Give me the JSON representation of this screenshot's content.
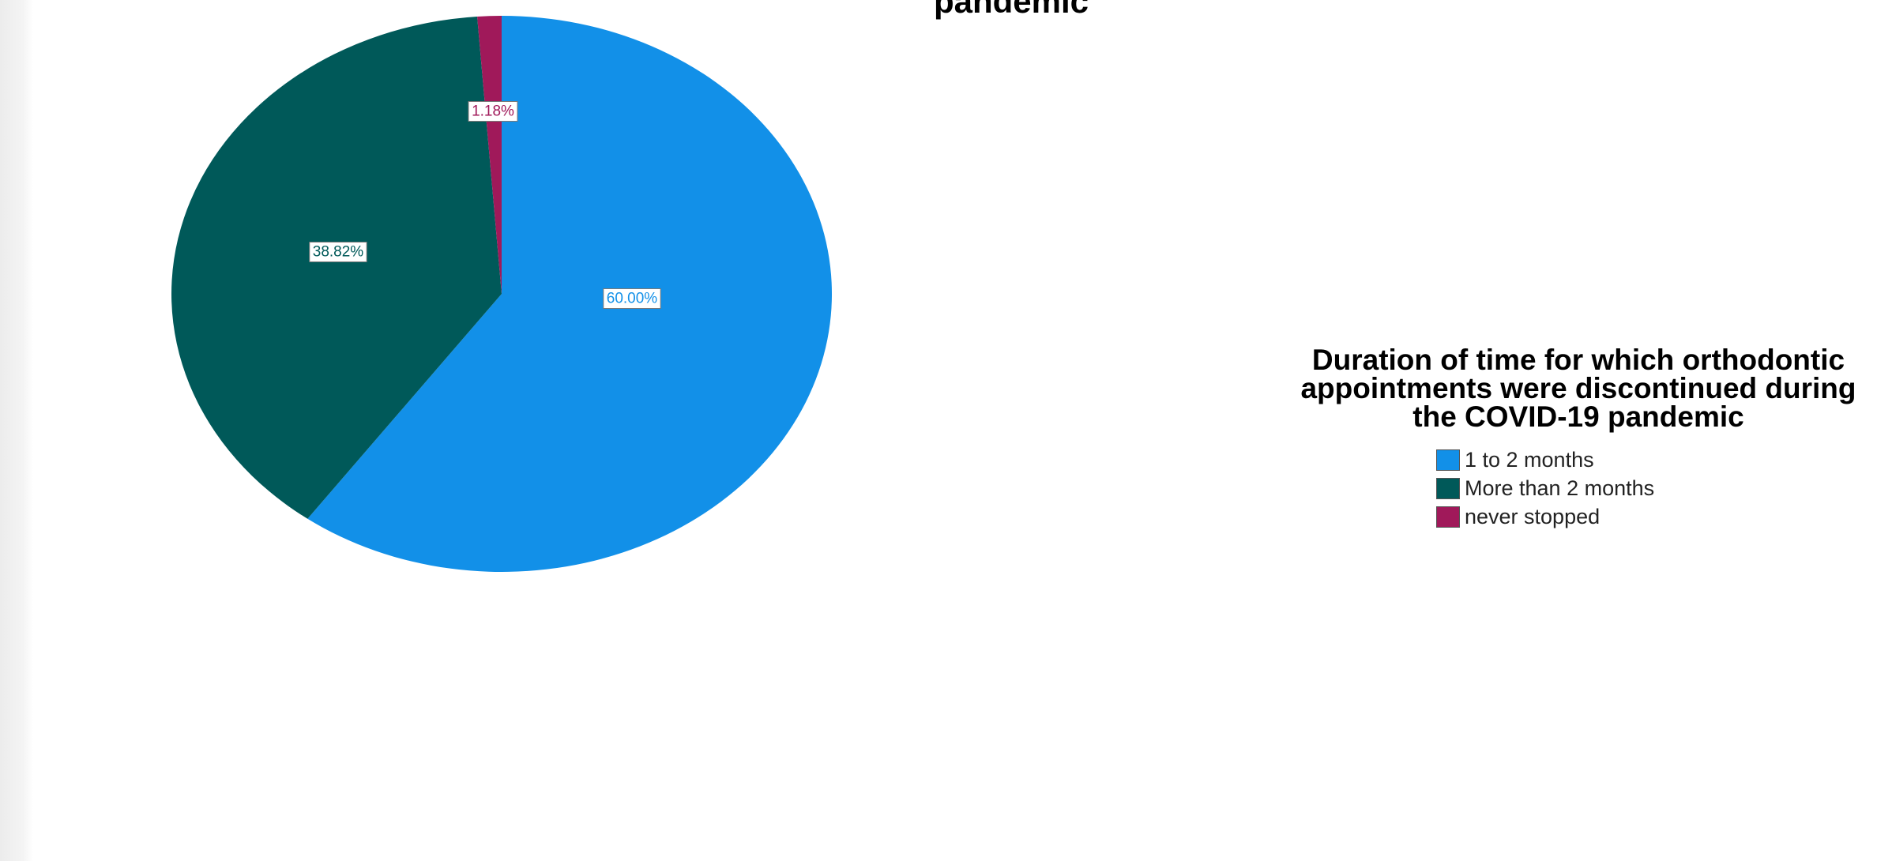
{
  "chart_data": {
    "type": "pie",
    "title": "pandemic",
    "legend_title": "Duration of time for which orthodontic appointments were discontinued during the COVID-19 pandemic",
    "legend_position": "right",
    "slices": [
      {
        "label": "1 to 2 months",
        "value": 60.0,
        "value_label": "60.00%",
        "color": "#1290e8",
        "label_color": "#1290e8"
      },
      {
        "label": "More than 2 months",
        "value": 38.82,
        "value_label": "38.82%",
        "color": "#005959",
        "label_color": "#005959"
      },
      {
        "label": "never stopped",
        "value": 1.18,
        "value_label": "1.18%",
        "color": "#a0195a",
        "label_color": "#a0195a"
      }
    ]
  }
}
